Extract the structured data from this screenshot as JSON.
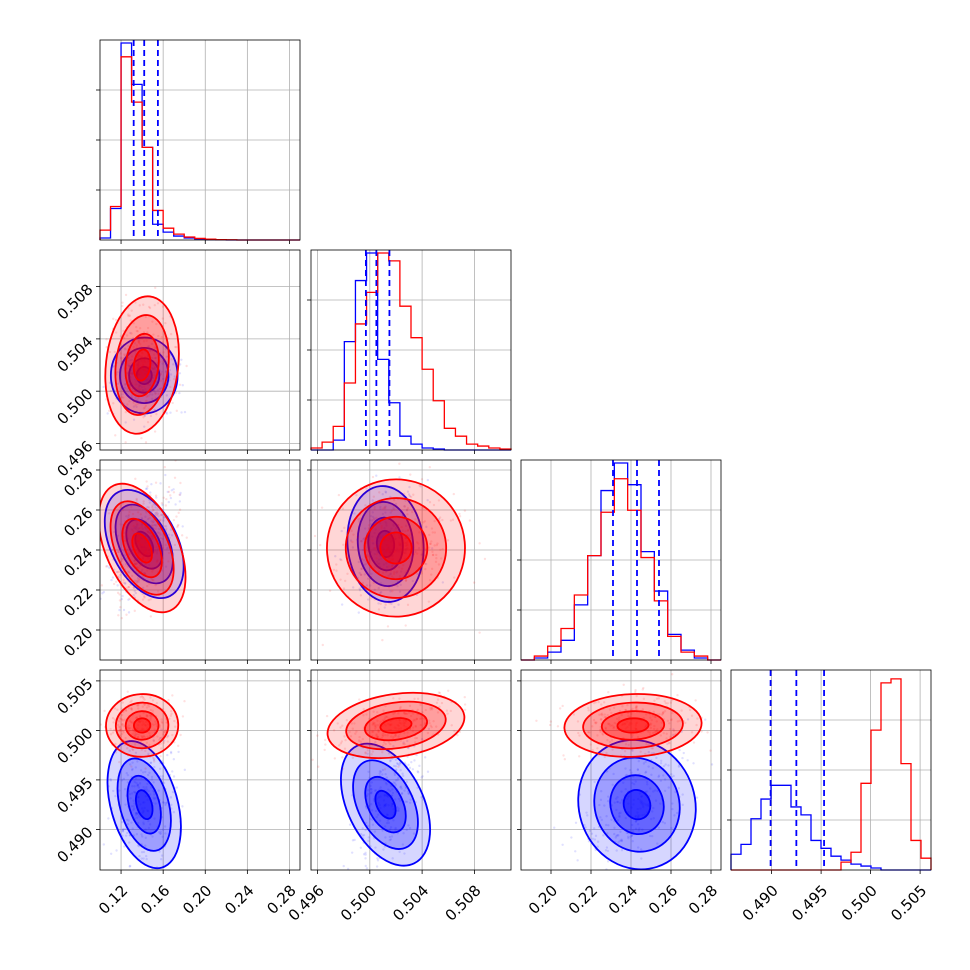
{
  "chart_data": {
    "type": "corner",
    "grid": true,
    "legend": "none",
    "colors": {
      "series_a": "#0000ff",
      "series_b": "#ff0000"
    },
    "series": [
      {
        "color": "#0000ff",
        "means": [
          0.142,
          0.5012,
          0.243,
          0.4925
        ],
        "sds": [
          0.012,
          0.0011,
          0.011,
          0.0025
        ]
      },
      {
        "color": "#ff0000",
        "means": [
          0.14,
          0.502,
          0.241,
          0.5005
        ],
        "sds": [
          0.013,
          0.002,
          0.013,
          0.0012
        ]
      }
    ],
    "quantile_lines": {
      "color": "#0000ff",
      "param_0": [
        0.132,
        0.142,
        0.155
      ],
      "param_1": [
        0.4997,
        0.5005,
        0.5015
      ],
      "param_2": [
        0.231,
        0.243,
        0.254
      ],
      "param_3": [
        0.4899,
        0.4925,
        0.4953
      ]
    },
    "diagonal_histograms": [
      {
        "param": 0,
        "x_range": [
          0.1,
          0.29
        ],
        "blue_bins": [
          0.01,
          0.16,
          1.0,
          0.79,
          0.47,
          0.08,
          0.04,
          0.02,
          0.01,
          0.005,
          0.002,
          0.001,
          0.0,
          0.0,
          0.0,
          0.0,
          0.0,
          0.0,
          0.0
        ],
        "red_bins": [
          0.05,
          0.17,
          0.93,
          0.7,
          0.47,
          0.15,
          0.06,
          0.03,
          0.015,
          0.008,
          0.004,
          0.002,
          0.001,
          0.0,
          0.0,
          0.0,
          0.0,
          0.0,
          0.0
        ]
      },
      {
        "param": 1,
        "x_range": [
          0.4955,
          0.5108
        ],
        "blue_bins": [
          0.0,
          0.0,
          0.05,
          0.55,
          0.86,
          1.0,
          0.46,
          0.24,
          0.07,
          0.03,
          0.01,
          0.005,
          0.0,
          0.0,
          0.0,
          0.0,
          0.0,
          0.0
        ],
        "red_bins": [
          0.01,
          0.04,
          0.12,
          0.34,
          0.64,
          0.8,
          1.0,
          0.96,
          0.73,
          0.57,
          0.41,
          0.25,
          0.11,
          0.07,
          0.03,
          0.02,
          0.01,
          0.005
        ]
      },
      {
        "param": 2,
        "x_range": [
          0.185,
          0.285
        ],
        "blue_bins": [
          0.0,
          0.01,
          0.04,
          0.1,
          0.28,
          0.53,
          0.86,
          1.0,
          0.89,
          0.55,
          0.35,
          0.13,
          0.05,
          0.01,
          0.0
        ],
        "red_bins": [
          0.0,
          0.02,
          0.07,
          0.16,
          0.33,
          0.53,
          0.75,
          0.92,
          0.76,
          0.52,
          0.3,
          0.12,
          0.04,
          0.02,
          0.0
        ]
      },
      {
        "param": 3,
        "x_range": [
          0.4859,
          0.5061
        ],
        "blue_bins": [
          0.08,
          0.13,
          0.26,
          0.36,
          0.43,
          0.43,
          0.32,
          0.28,
          0.15,
          0.11,
          0.07,
          0.05,
          0.03,
          0.02,
          0.01,
          0.0,
          0.0,
          0.0,
          0.0,
          0.0
        ],
        "red_bins": [
          0.0,
          0.0,
          0.0,
          0.0,
          0.0,
          0.0,
          0.0,
          0.0,
          0.0,
          0.0,
          0.0,
          0.04,
          0.09,
          0.44,
          0.71,
          0.95,
          0.97,
          0.54,
          0.15,
          0.06
        ]
      }
    ],
    "panels": [
      {
        "row": 0,
        "col": 0,
        "x_range": [
          0.1,
          0.29
        ],
        "x_ticks": [],
        "y_ticks": []
      },
      {
        "row": 1,
        "col": 0,
        "x_range": [
          0.1,
          0.29
        ],
        "y_range": [
          0.4955,
          0.5108
        ],
        "x_ticks": [],
        "y_ticks": [
          "0.496",
          "0.500",
          "0.504",
          "0.508"
        ]
      },
      {
        "row": 1,
        "col": 1,
        "x_range": [
          0.4955,
          0.5108
        ],
        "x_ticks": [],
        "y_ticks": []
      },
      {
        "row": 2,
        "col": 0,
        "x_range": [
          0.1,
          0.29
        ],
        "y_range": [
          0.185,
          0.285
        ],
        "x_ticks": [],
        "y_ticks": [
          "0.20",
          "0.22",
          "0.24",
          "0.26",
          "0.28"
        ]
      },
      {
        "row": 2,
        "col": 1,
        "x_range": [
          0.4955,
          0.5108
        ],
        "y_range": [
          0.185,
          0.285
        ],
        "x_ticks": [],
        "y_ticks": []
      },
      {
        "row": 2,
        "col": 2,
        "x_range": [
          0.185,
          0.285
        ],
        "x_ticks": [],
        "y_ticks": []
      },
      {
        "row": 3,
        "col": 0,
        "x_range": [
          0.1,
          0.29
        ],
        "y_range": [
          0.4859,
          0.5061
        ],
        "x_ticks": [
          "0.12",
          "0.16",
          "0.20",
          "0.24",
          "0.28"
        ],
        "y_ticks": [
          "0.490",
          "0.495",
          "0.500",
          "0.505"
        ]
      },
      {
        "row": 3,
        "col": 1,
        "x_range": [
          0.4955,
          0.5108
        ],
        "y_range": [
          0.4859,
          0.5061
        ],
        "x_ticks": [
          "0.496",
          "0.500",
          "0.504",
          "0.508"
        ],
        "y_ticks": []
      },
      {
        "row": 3,
        "col": 2,
        "x_range": [
          0.185,
          0.285
        ],
        "y_range": [
          0.4859,
          0.5061
        ],
        "x_ticks": [
          "0.20",
          "0.22",
          "0.24",
          "0.26",
          "0.28"
        ],
        "y_ticks": []
      },
      {
        "row": 3,
        "col": 3,
        "x_range": [
          0.4859,
          0.5061
        ],
        "x_ticks": [
          "0.490",
          "0.495",
          "0.500",
          "0.505"
        ],
        "y_ticks": []
      }
    ]
  }
}
